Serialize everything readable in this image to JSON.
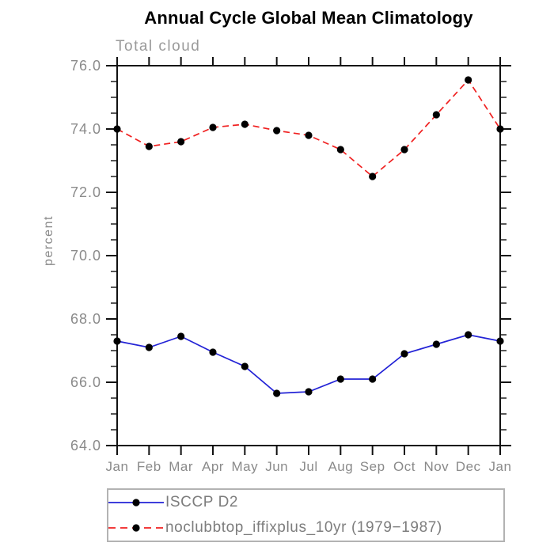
{
  "chart_data": {
    "type": "line",
    "title": "Annual Cycle Global Mean Climatology",
    "subtitle": "Total cloud",
    "xlabel": "",
    "ylabel": "percent",
    "categories": [
      "Jan",
      "Feb",
      "Mar",
      "Apr",
      "May",
      "Jun",
      "Jul",
      "Aug",
      "Sep",
      "Oct",
      "Nov",
      "Dec",
      "Jan"
    ],
    "ylim": [
      64.0,
      76.0
    ],
    "ytick_interval": 2.0,
    "yminor_interval": 0.5,
    "ytick_labels": [
      "64.0",
      "66.0",
      "68.0",
      "70.0",
      "72.0",
      "74.0",
      "76.0"
    ],
    "grid": false,
    "frame": "box-with-outward-ticks",
    "legend_position": "bottom-left-box",
    "series": [
      {
        "name": "ISCCP D2",
        "color": "#2323d6",
        "line_style": "solid",
        "marker": "filled-black-circle",
        "values": [
          67.3,
          67.1,
          67.45,
          66.95,
          66.5,
          65.65,
          65.7,
          66.1,
          66.1,
          66.9,
          67.2,
          67.5,
          67.3
        ]
      },
      {
        "name": "noclubbtop_iffixplus_10yr (1979−1987)",
        "color": "#f02020",
        "line_style": "dashed",
        "marker": "filled-black-circle",
        "values": [
          74.0,
          73.45,
          73.6,
          74.05,
          74.15,
          73.95,
          73.8,
          73.35,
          72.5,
          73.35,
          74.45,
          75.55,
          74.0
        ]
      }
    ]
  },
  "colors": {
    "axis": "#111111",
    "tick_label": "#8a8a8a",
    "title": "#000000",
    "subtitle": "#9a9a9a",
    "legend_text": "#7d7d7d",
    "legend_border": "#b3b3b3",
    "marker": "#000000"
  }
}
